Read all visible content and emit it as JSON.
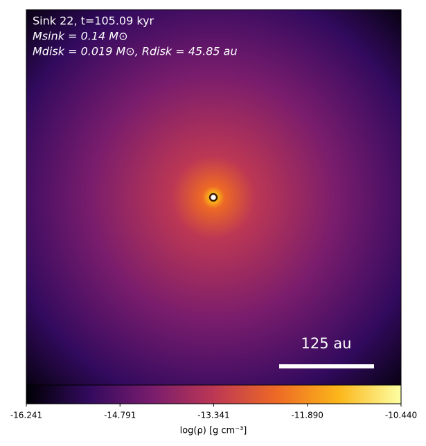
{
  "chart_data": {
    "type": "heatmap",
    "annotations": [
      "Sink 22, t=105.09 kyr",
      "Msink = 0.14 M⊙",
      "Mdisk = 0.019 M⊙, Rdisk = 45.85 au"
    ],
    "scale_bar_label": "125 au",
    "colorbar_label": "log(ρ) [g cm⁻³]",
    "clim": [
      -16.241,
      -10.44
    ],
    "cticks": [
      -16.241,
      -14.791,
      -13.341,
      {
        "value": -11.89,
        "label": "-11.890"
      },
      {
        "value": -10.44,
        "label": "-10.440"
      }
    ],
    "colormap": [
      "#000004",
      "#320a5e",
      "#781c6d",
      "#bc3754",
      "#ed6925",
      "#fbb61a",
      "#fcffa4"
    ]
  }
}
